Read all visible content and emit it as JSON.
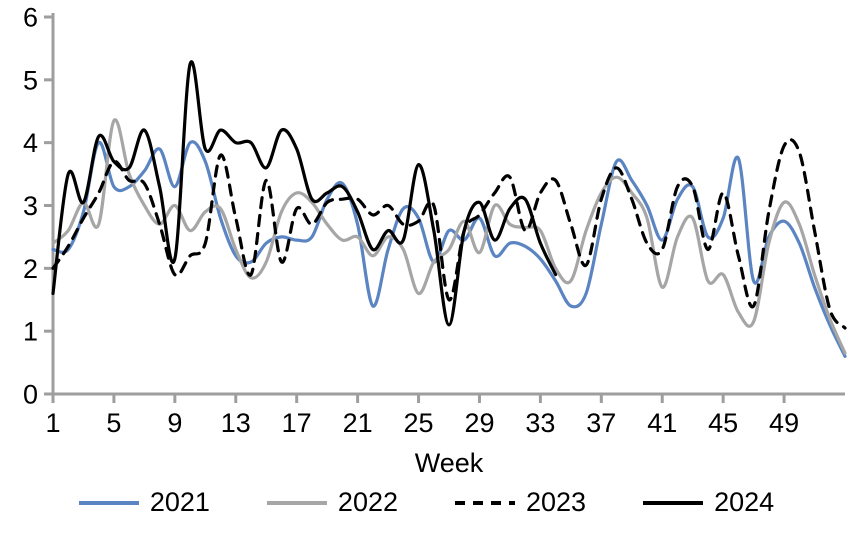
{
  "chart_data": {
    "type": "line",
    "title": "",
    "xlabel": "Week",
    "ylabel": "",
    "ylim": [
      0,
      6
    ],
    "y_ticks": [
      0,
      1,
      2,
      3,
      4,
      5,
      6
    ],
    "x_ticks": [
      1,
      5,
      9,
      13,
      17,
      21,
      25,
      29,
      33,
      37,
      41,
      45,
      49
    ],
    "x_start": 1,
    "x_max": 53,
    "grid": false,
    "legend_position": "bottom",
    "axis_color": "#9e9e9e",
    "smooth": true,
    "series": [
      {
        "name": "2021",
        "color": "#5b84c2",
        "style": "solid",
        "values": [
          2.3,
          2.3,
          2.9,
          4.0,
          3.3,
          3.3,
          3.55,
          3.9,
          3.3,
          4.0,
          3.7,
          2.8,
          2.2,
          2.1,
          2.4,
          2.5,
          2.45,
          2.5,
          3.1,
          3.35,
          2.7,
          1.4,
          2.3,
          2.95,
          2.8,
          2.1,
          2.6,
          2.45,
          2.8,
          2.2,
          2.4,
          2.35,
          2.15,
          1.8,
          1.4,
          1.6,
          2.7,
          3.7,
          3.4,
          3.0,
          2.45,
          3.1,
          3.3,
          2.5,
          2.8,
          3.75,
          1.8,
          2.5,
          2.75,
          2.4,
          1.7,
          1.1,
          0.6
        ]
      },
      {
        "name": "2022",
        "color": "#a6a6a6",
        "style": "solid",
        "values": [
          2.4,
          2.6,
          3.05,
          2.7,
          4.35,
          3.5,
          3.0,
          2.7,
          3.0,
          2.6,
          2.9,
          2.95,
          2.3,
          1.85,
          2.1,
          2.9,
          3.2,
          3.05,
          2.7,
          2.45,
          2.5,
          2.2,
          2.5,
          2.3,
          1.6,
          2.1,
          2.3,
          2.75,
          2.25,
          3.0,
          2.7,
          2.65,
          2.6,
          2.0,
          1.8,
          2.6,
          3.2,
          3.45,
          3.2,
          2.8,
          1.7,
          2.5,
          2.8,
          1.8,
          1.9,
          1.3,
          1.15,
          2.4,
          3.05,
          2.7,
          1.9,
          1.2,
          0.65
        ]
      },
      {
        "name": "2023",
        "color": "#000000",
        "style": "dashed",
        "values": [
          2.0,
          2.35,
          2.8,
          3.2,
          3.7,
          3.4,
          3.35,
          2.7,
          1.9,
          2.2,
          2.4,
          3.8,
          2.8,
          1.9,
          3.4,
          2.1,
          2.95,
          2.7,
          3.05,
          3.1,
          3.1,
          2.85,
          3.0,
          2.7,
          2.75,
          3.0,
          1.5,
          2.6,
          2.85,
          3.2,
          3.45,
          2.6,
          3.2,
          3.4,
          2.7,
          2.05,
          3.1,
          3.6,
          3.1,
          2.4,
          2.3,
          3.3,
          3.3,
          2.3,
          3.2,
          2.2,
          1.4,
          2.9,
          3.95,
          3.85,
          2.6,
          1.35,
          1.05
        ]
      },
      {
        "name": "2024",
        "color": "#000000",
        "style": "solid",
        "values": [
          1.6,
          3.5,
          3.05,
          4.1,
          3.7,
          3.6,
          4.2,
          3.3,
          2.15,
          5.25,
          3.9,
          4.2,
          4.0,
          4.0,
          3.6,
          4.2,
          3.9,
          3.1,
          3.2,
          3.3,
          2.9,
          2.3,
          2.6,
          2.45,
          3.65,
          2.6,
          1.1,
          2.6,
          3.05,
          2.45,
          2.95,
          3.1,
          2.4,
          1.9
        ]
      }
    ]
  }
}
